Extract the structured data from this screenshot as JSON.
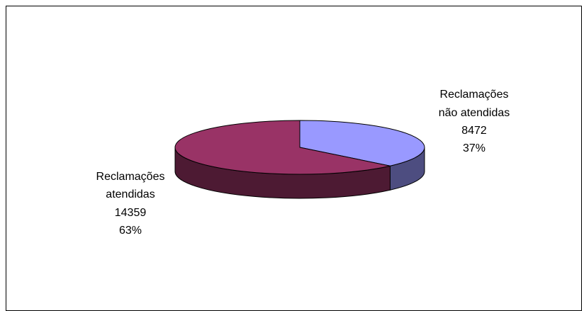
{
  "chart_data": {
    "type": "pie",
    "style": "3d",
    "title": "",
    "legend": "none",
    "slices": [
      {
        "label_lines": [
          "Reclamações",
          "não atendidas"
        ],
        "value": 8472,
        "value_text": "8472",
        "percent": 37,
        "percent_text": "37%",
        "color_top": "#9999ff",
        "color_side": "#4d4d80"
      },
      {
        "label_lines": [
          "Reclamações",
          "atendidas"
        ],
        "value": 14359,
        "value_text": "14359",
        "percent": 63,
        "percent_text": "63%",
        "color_top": "#993366",
        "color_side": "#4d1a33"
      }
    ]
  }
}
